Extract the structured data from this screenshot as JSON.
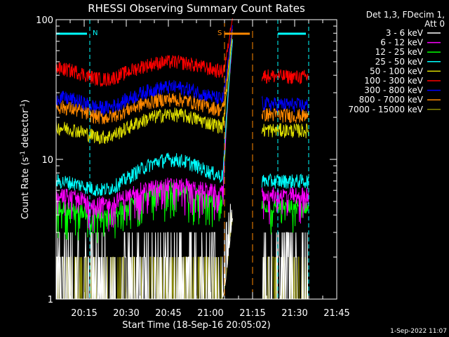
{
  "chart_data": {
    "type": "line",
    "title": "RHESSI Observing Summary Count Rates",
    "xlabel": "Start Time (18-Sep-16 20:05:02)",
    "ylabel_main": "Count Rate (s",
    "ylabel_sup1": "-1",
    "ylabel_mid": " detector",
    "ylabel_sup2": "-1",
    "ylabel_end": ")",
    "y_scale": "log",
    "ylim": [
      1,
      100
    ],
    "x_range": [
      "20:05",
      "21:45"
    ],
    "x_ticks": [
      "20:15",
      "20:30",
      "20:45",
      "21:00",
      "21:15",
      "21:30",
      "21:45"
    ],
    "y_ticks": [
      "1",
      "10",
      "100"
    ],
    "legend_header": [
      "Det 1,3, FDecim 1,",
      "Att 0"
    ],
    "legend_position": "right",
    "timestamp": "1-Sep-2022 11:07",
    "data_gap": [
      "21:08",
      "21:18"
    ],
    "series": [
      {
        "name": "3 - 6 keV",
        "color": "#ffffff",
        "level": [
          1.0,
          2.6
        ],
        "peak": 0
      },
      {
        "name": "6 - 12 keV",
        "color": "#ff00ff",
        "level": [
          5.5,
          5.5
        ],
        "peak": 6.5
      },
      {
        "name": "12 - 25 keV",
        "color": "#00ff00",
        "level": [
          4.5,
          4.5
        ],
        "peak": 6.0
      },
      {
        "name": "25 - 50 keV",
        "color": "#00ffff",
        "level": [
          7.0,
          7.0
        ],
        "peak": 10.0
      },
      {
        "name": "50 - 100 keV",
        "color": "#dddd00",
        "level": [
          17.0,
          16.0
        ],
        "peak": 21.0
      },
      {
        "name": "100 - 300 keV",
        "color": "#ff0000",
        "level": [
          45.0,
          38.0
        ],
        "peak": 50.0
      },
      {
        "name": "300 - 800 keV",
        "color": "#0000ff",
        "level": [
          28.0,
          24.0
        ],
        "peak": 33.0
      },
      {
        "name": "800 - 7000 keV",
        "color": "#ff8800",
        "level": [
          24.0,
          20.0
        ],
        "peak": 27.0
      },
      {
        "name": "7000 - 15000 keV",
        "color": "#888800",
        "level": [
          1.0,
          2.0
        ],
        "peak": 0
      }
    ],
    "annotations": [
      {
        "label": "N",
        "color": "#00ffff",
        "x_start": "20:05",
        "x_end": "20:17"
      },
      {
        "label": "S",
        "color": "#ff8800",
        "x_start": "21:05",
        "x_end": "21:15"
      },
      {
        "label": "",
        "color": "#00ffff",
        "x_start": "21:24",
        "x_end": "21:35"
      }
    ]
  }
}
